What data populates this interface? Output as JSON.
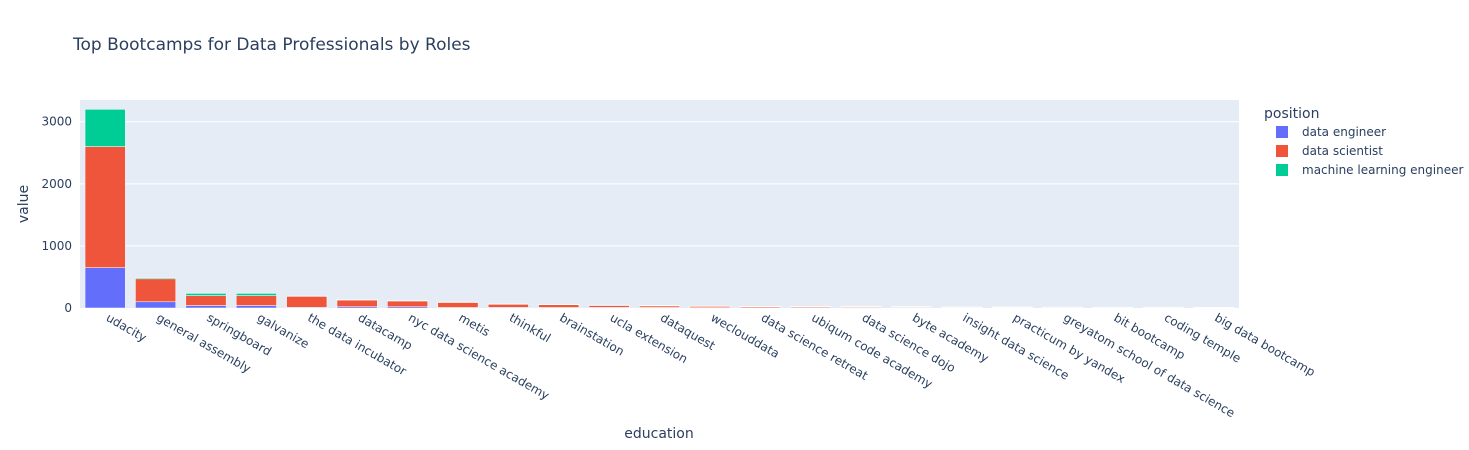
{
  "chart_data": {
    "type": "bar",
    "stacked": true,
    "title": "Top Bootcamps for Data Professionals by Roles",
    "xlabel": "education",
    "ylabel": "value",
    "ylim": [
      0,
      3350
    ],
    "yticks": [
      0,
      1000,
      2000,
      3000
    ],
    "ytick_labels": [
      "0",
      "1000",
      "2000",
      "3000"
    ],
    "grid": true,
    "legend_title": "position",
    "legend_position": "top-right",
    "categories": [
      "udacity",
      "general assembly",
      "springboard",
      "galvanize",
      "the data incubator",
      "datacamp",
      "nyc data science academy",
      "metis",
      "thinkful",
      "brainstation",
      "ucla extension",
      "dataquest",
      "weclouddata",
      "data science retreat",
      "ubiqum code academy",
      "data science dojo",
      "byte academy",
      "insight data science",
      "practicum by yandex",
      "greyatom school of data science",
      "bit bootcamp",
      "coding temple",
      "big data bootcamp"
    ],
    "series": [
      {
        "name": "data engineer",
        "color": "#636efa",
        "values": [
          650,
          100,
          40,
          40,
          10,
          20,
          20,
          8,
          10,
          8,
          10,
          8,
          6,
          4,
          4,
          6,
          5,
          3,
          3,
          2,
          3,
          2,
          3
        ]
      },
      {
        "name": "data scientist",
        "color": "#ef553b",
        "values": [
          1950,
          370,
          160,
          160,
          180,
          110,
          95,
          85,
          55,
          50,
          35,
          30,
          25,
          22,
          20,
          16,
          15,
          15,
          12,
          12,
          10,
          10,
          8
        ]
      },
      {
        "name": "machine learning engineer",
        "color": "#00cc96",
        "values": [
          600,
          15,
          35,
          35,
          5,
          5,
          5,
          3,
          2,
          2,
          2,
          2,
          2,
          2,
          2,
          2,
          2,
          1,
          1,
          1,
          1,
          1,
          1
        ]
      }
    ]
  }
}
